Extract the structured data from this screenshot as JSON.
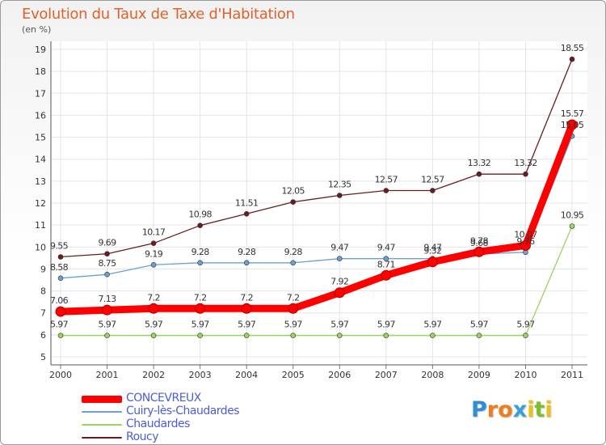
{
  "title": "Evolution du Taux de Taxe d'Habitation",
  "unit_label": "(en %)",
  "logo": {
    "letters": [
      "P",
      "r",
      "o",
      "x",
      "i",
      "t",
      "i"
    ],
    "colors": [
      "#2e8fd6",
      "#f07c1b",
      "#f07c1b",
      "#3aa0d8",
      "#e8c21a",
      "#7bbf2a",
      "#e8c21a"
    ]
  },
  "chart_data": {
    "type": "line",
    "title": "Evolution du Taux de Taxe d'Habitation",
    "ylabel": "(en %)",
    "x": [
      "2000",
      "2001",
      "2002",
      "2003",
      "2004",
      "2005",
      "2006",
      "2007",
      "2008",
      "2009",
      "2010",
      "2011"
    ],
    "ylim": [
      5,
      19
    ],
    "yticks": [
      "5",
      "6",
      "7",
      "8",
      "9",
      "10",
      "11",
      "12",
      "13",
      "14",
      "15",
      "16",
      "17",
      "18",
      "19"
    ],
    "grid": true,
    "legend_position": "bottom-left",
    "series": [
      {
        "name": "Roucy",
        "color": "#6b1c1c",
        "values": [
          9.55,
          9.69,
          10.17,
          10.98,
          11.51,
          12.05,
          12.35,
          12.57,
          12.57,
          13.32,
          13.32,
          18.55
        ],
        "labels": [
          "9.55",
          "9.69",
          "10.17",
          "10.98",
          "11.51",
          "12.05",
          "12.35",
          "12.57",
          "12.57",
          "13.32",
          "13.32",
          "18.55"
        ]
      },
      {
        "name": "Chaudardes",
        "color": "#9ad55f",
        "values": [
          5.97,
          5.97,
          5.97,
          5.97,
          5.97,
          5.97,
          5.97,
          5.97,
          5.97,
          5.97,
          5.97,
          10.95
        ],
        "labels": [
          "5.97",
          "5.97",
          "5.97",
          "5.97",
          "5.97",
          "5.97",
          "5.97",
          "5.97",
          "5.97",
          "5.97",
          "5.97",
          "10.95"
        ]
      },
      {
        "name": "Cuiry-lès-Chaudardes",
        "color": "#6d9fd0",
        "values": [
          8.58,
          8.75,
          9.19,
          9.28,
          9.28,
          9.28,
          9.47,
          9.47,
          9.47,
          9.68,
          9.76,
          15.05
        ],
        "labels": [
          "8.58",
          "8.75",
          "9.19",
          "9.28",
          "9.28",
          "9.28",
          "9.47",
          "9.47",
          "9.47",
          "9.68",
          "9.76",
          "15.05"
        ]
      },
      {
        "name": "CONCEVREUX",
        "color": "#ff0000",
        "values": [
          7.06,
          7.13,
          7.2,
          7.2,
          7.2,
          7.2,
          7.92,
          8.71,
          9.32,
          9.78,
          10.07,
          15.57
        ],
        "labels": [
          "7.06",
          "7.13",
          "7.2",
          "7.2",
          "7.2",
          "7.2",
          "7.92",
          "8.71",
          "9.32",
          "9.78",
          "10.07",
          "15.57"
        ]
      }
    ],
    "legend": [
      {
        "name": "CONCEVREUX",
        "color": "#ff0000"
      },
      {
        "name": "Cuiry-lès-Chaudardes",
        "color": "#6d9fd0"
      },
      {
        "name": "Chaudardes",
        "color": "#9ad55f"
      },
      {
        "name": "Roucy",
        "color": "#6b1c1c"
      }
    ]
  }
}
